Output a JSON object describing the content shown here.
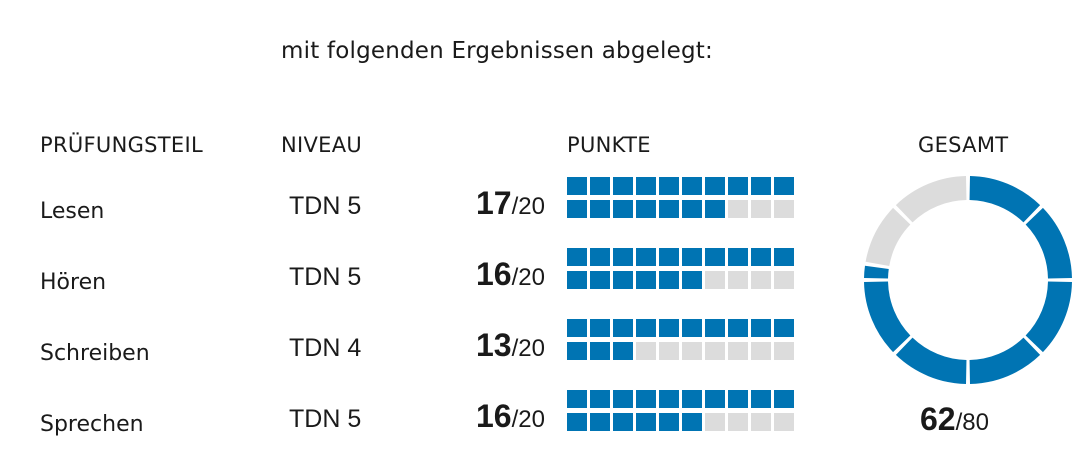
{
  "intro_text": "mit folgenden Ergebnissen abgelegt:",
  "headers": {
    "teil": "PRÜFUNGSTEIL",
    "niveau": "NIVEAU",
    "punkte": "PUNKTE",
    "gesamt": "GESAMT"
  },
  "rows": [
    {
      "name": "Lesen",
      "level": "TDN 5",
      "points": "17",
      "max": "/20",
      "score": 17,
      "out_of": 20
    },
    {
      "name": "Hören",
      "level": "TDN 5",
      "points": "16",
      "max": "/20",
      "score": 16,
      "out_of": 20
    },
    {
      "name": "Schreiben",
      "level": "TDN 4",
      "points": "13",
      "max": "/20",
      "score": 13,
      "out_of": 20
    },
    {
      "name": "Sprechen",
      "level": "TDN 5",
      "points": "16",
      "max": "/20",
      "score": 16,
      "out_of": 20
    }
  ],
  "total": {
    "points": "62",
    "max": "/80",
    "score": 62,
    "out_of": 80
  },
  "colors": {
    "filled": "#0074b3",
    "empty": "#dcdcdc",
    "text": "#1a1a1a"
  }
}
